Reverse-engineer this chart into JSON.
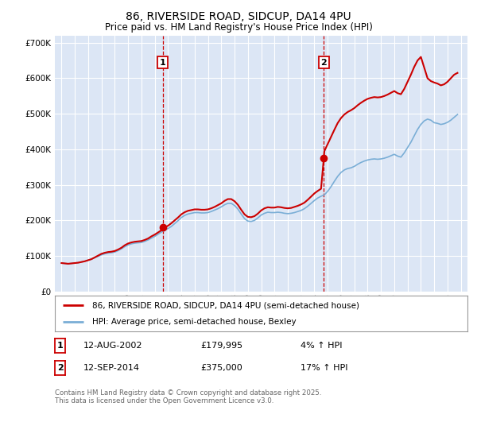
{
  "title": "86, RIVERSIDE ROAD, SIDCUP, DA14 4PU",
  "subtitle": "Price paid vs. HM Land Registry's House Price Index (HPI)",
  "title_fontsize": 10,
  "subtitle_fontsize": 8.5,
  "bg_color": "#ffffff",
  "plot_bg_color": "#dce6f5",
  "grid_color": "#ffffff",
  "red_color": "#cc0000",
  "blue_color": "#7aaed6",
  "purchase1_date": 2002.614,
  "purchase1_price": 179995,
  "purchase1_label": "1",
  "purchase2_date": 2014.706,
  "purchase2_price": 375000,
  "purchase2_label": "2",
  "ylim": [
    0,
    720000
  ],
  "xlim_start": 1994.5,
  "xlim_end": 2025.5,
  "yticks": [
    0,
    100000,
    200000,
    300000,
    400000,
    500000,
    600000,
    700000
  ],
  "ytick_labels": [
    "£0",
    "£100K",
    "£200K",
    "£300K",
    "£400K",
    "£500K",
    "£600K",
    "£700K"
  ],
  "legend1_label": "86, RIVERSIDE ROAD, SIDCUP, DA14 4PU (semi-detached house)",
  "legend2_label": "HPI: Average price, semi-detached house, Bexley",
  "table_row1": [
    "1",
    "12-AUG-2002",
    "£179,995",
    "4% ↑ HPI"
  ],
  "table_row2": [
    "2",
    "12-SEP-2014",
    "£375,000",
    "17% ↑ HPI"
  ],
  "footnote": "Contains HM Land Registry data © Crown copyright and database right 2025.\nThis data is licensed under the Open Government Licence v3.0.",
  "hpi_data": {
    "dates": [
      1995.0,
      1995.25,
      1995.5,
      1995.75,
      1996.0,
      1996.25,
      1996.5,
      1996.75,
      1997.0,
      1997.25,
      1997.5,
      1997.75,
      1998.0,
      1998.25,
      1998.5,
      1998.75,
      1999.0,
      1999.25,
      1999.5,
      1999.75,
      2000.0,
      2000.25,
      2000.5,
      2000.75,
      2001.0,
      2001.25,
      2001.5,
      2001.75,
      2002.0,
      2002.25,
      2002.5,
      2002.75,
      2003.0,
      2003.25,
      2003.5,
      2003.75,
      2004.0,
      2004.25,
      2004.5,
      2004.75,
      2005.0,
      2005.25,
      2005.5,
      2005.75,
      2006.0,
      2006.25,
      2006.5,
      2006.75,
      2007.0,
      2007.25,
      2007.5,
      2007.75,
      2008.0,
      2008.25,
      2008.5,
      2008.75,
      2009.0,
      2009.25,
      2009.5,
      2009.75,
      2010.0,
      2010.25,
      2010.5,
      2010.75,
      2011.0,
      2011.25,
      2011.5,
      2011.75,
      2012.0,
      2012.25,
      2012.5,
      2012.75,
      2013.0,
      2013.25,
      2013.5,
      2013.75,
      2014.0,
      2014.25,
      2014.5,
      2014.75,
      2015.0,
      2015.25,
      2015.5,
      2015.75,
      2016.0,
      2016.25,
      2016.5,
      2016.75,
      2017.0,
      2017.25,
      2017.5,
      2017.75,
      2018.0,
      2018.25,
      2018.5,
      2018.75,
      2019.0,
      2019.25,
      2019.5,
      2019.75,
      2020.0,
      2020.25,
      2020.5,
      2020.75,
      2021.0,
      2021.25,
      2021.5,
      2021.75,
      2022.0,
      2022.25,
      2022.5,
      2022.75,
      2023.0,
      2023.25,
      2023.5,
      2023.75,
      2024.0,
      2024.25,
      2024.5,
      2024.75
    ],
    "values": [
      80000,
      79000,
      78000,
      79000,
      80000,
      81000,
      83000,
      85000,
      88000,
      91000,
      95000,
      99000,
      103000,
      106000,
      108000,
      109000,
      111000,
      115000,
      120000,
      126000,
      131000,
      134000,
      136000,
      137000,
      138000,
      141000,
      145000,
      150000,
      155000,
      161000,
      167000,
      172000,
      177000,
      183000,
      191000,
      199000,
      208000,
      214000,
      218000,
      220000,
      222000,
      222000,
      221000,
      221000,
      222000,
      225000,
      229000,
      233000,
      238000,
      244000,
      248000,
      248000,
      242000,
      232000,
      218000,
      205000,
      198000,
      197000,
      200000,
      207000,
      215000,
      220000,
      223000,
      222000,
      222000,
      223000,
      222000,
      220000,
      219000,
      220000,
      222000,
      225000,
      228000,
      233000,
      240000,
      248000,
      256000,
      263000,
      268000,
      272000,
      282000,
      295000,
      310000,
      324000,
      335000,
      342000,
      346000,
      348000,
      352000,
      358000,
      363000,
      367000,
      370000,
      372000,
      373000,
      372000,
      373000,
      375000,
      378000,
      382000,
      386000,
      381000,
      378000,
      390000,
      405000,
      420000,
      438000,
      456000,
      470000,
      480000,
      485000,
      482000,
      475000,
      473000,
      470000,
      472000,
      476000,
      482000,
      490000,
      498000
    ]
  },
  "house_data": {
    "dates": [
      1995.0,
      1995.25,
      1995.5,
      1995.75,
      1996.0,
      1996.25,
      1996.5,
      1996.75,
      1997.0,
      1997.25,
      1997.5,
      1997.75,
      1998.0,
      1998.25,
      1998.5,
      1998.75,
      1999.0,
      1999.25,
      1999.5,
      1999.75,
      2000.0,
      2000.25,
      2000.5,
      2000.75,
      2001.0,
      2001.25,
      2001.5,
      2001.75,
      2002.0,
      2002.25,
      2002.5,
      2002.614,
      2002.75,
      2003.0,
      2003.25,
      2003.5,
      2003.75,
      2004.0,
      2004.25,
      2004.5,
      2004.75,
      2005.0,
      2005.25,
      2005.5,
      2005.75,
      2006.0,
      2006.25,
      2006.5,
      2006.75,
      2007.0,
      2007.25,
      2007.5,
      2007.75,
      2008.0,
      2008.25,
      2008.5,
      2008.75,
      2009.0,
      2009.25,
      2009.5,
      2009.75,
      2010.0,
      2010.25,
      2010.5,
      2010.75,
      2011.0,
      2011.25,
      2011.5,
      2011.75,
      2012.0,
      2012.25,
      2012.5,
      2012.75,
      2013.0,
      2013.25,
      2013.5,
      2013.75,
      2014.0,
      2014.25,
      2014.5,
      2014.706,
      2014.75,
      2015.0,
      2015.25,
      2015.5,
      2015.75,
      2016.0,
      2016.25,
      2016.5,
      2016.75,
      2017.0,
      2017.25,
      2017.5,
      2017.75,
      2018.0,
      2018.25,
      2018.5,
      2018.75,
      2019.0,
      2019.25,
      2019.5,
      2019.75,
      2020.0,
      2020.25,
      2020.5,
      2020.75,
      2021.0,
      2021.25,
      2021.5,
      2021.75,
      2022.0,
      2022.25,
      2022.5,
      2022.75,
      2023.0,
      2023.25,
      2023.5,
      2023.75,
      2024.0,
      2024.25,
      2024.5,
      2024.75
    ],
    "values": [
      80000,
      79000,
      78000,
      79000,
      80000,
      81000,
      83000,
      85000,
      88000,
      91000,
      96000,
      101000,
      106000,
      109000,
      111000,
      112000,
      114000,
      118000,
      123000,
      130000,
      135000,
      138000,
      140000,
      141000,
      142000,
      145000,
      149000,
      155000,
      160000,
      166000,
      172000,
      179995,
      179995,
      185000,
      192000,
      200000,
      208000,
      217000,
      223000,
      227000,
      229000,
      231000,
      231000,
      230000,
      230000,
      231000,
      234000,
      238000,
      243000,
      248000,
      255000,
      260000,
      260000,
      254000,
      244000,
      230000,
      217000,
      210000,
      209000,
      212000,
      219000,
      228000,
      234000,
      237000,
      236000,
      236000,
      238000,
      237000,
      235000,
      234000,
      235000,
      238000,
      241000,
      245000,
      250000,
      258000,
      267000,
      276000,
      283000,
      289000,
      375000,
      395000,
      415000,
      435000,
      455000,
      474000,
      488000,
      498000,
      505000,
      510000,
      516000,
      524000,
      531000,
      537000,
      542000,
      545000,
      547000,
      546000,
      547000,
      550000,
      554000,
      559000,
      564000,
      558000,
      555000,
      570000,
      590000,
      610000,
      632000,
      650000,
      660000,
      630000,
      600000,
      592000,
      588000,
      585000,
      580000,
      583000,
      590000,
      600000,
      610000,
      615000
    ]
  }
}
